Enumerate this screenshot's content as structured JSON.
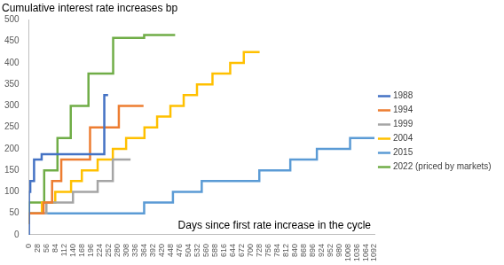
{
  "chart_data": {
    "type": "line",
    "title": "Cumulative interest rate increases bp",
    "x_label": "Days since first rate increase in the cycle",
    "line_style": "step",
    "grid": false,
    "legend": "right",
    "xlim": [
      0,
      1092
    ],
    "xticks": [
      0,
      28,
      56,
      84,
      112,
      140,
      168,
      196,
      224,
      252,
      280,
      308,
      336,
      364,
      392,
      420,
      448,
      476,
      504,
      532,
      560,
      588,
      616,
      644,
      672,
      700,
      728,
      756,
      784,
      812,
      840,
      868,
      896,
      924,
      952,
      980,
      1008,
      1036,
      1064,
      1092
    ],
    "ylim": [
      0,
      500
    ],
    "yticks": [
      0,
      50,
      100,
      150,
      200,
      250,
      300,
      350,
      400,
      450,
      500
    ],
    "series": [
      {
        "name": "1988",
        "color": "#4472c4",
        "x": [
          0,
          4,
          16,
          40,
          238,
          250
        ],
        "values": [
          0,
          100,
          125,
          175,
          187.5,
          325
        ]
      },
      {
        "name": "1994",
        "color": "#ed7d31",
        "x": [
          0,
          46,
          73,
          102,
          193,
          284,
          362
        ],
        "values": [
          25,
          50,
          75,
          125,
          175,
          250,
          300
        ]
      },
      {
        "name": "1999",
        "color": "#a5a5a5",
        "x": [
          0,
          55,
          139,
          217,
          265,
          321
        ],
        "values": [
          25,
          50,
          75,
          100,
          125,
          175
        ]
      },
      {
        "name": "2004",
        "color": "#ffc000",
        "x": [
          0,
          41,
          83,
          133,
          167,
          217,
          265,
          307,
          365,
          405,
          447,
          489,
          531,
          580,
          636,
          679,
          729
        ],
        "values": [
          25,
          50,
          75,
          100,
          125,
          150,
          175,
          200,
          225,
          250,
          275,
          300,
          325,
          350,
          375,
          400,
          425
        ]
      },
      {
        "name": "2015",
        "color": "#5b9bd5",
        "x": [
          0,
          364,
          455,
          546,
          728,
          826,
          910,
          1015,
          1092
        ],
        "values": [
          25,
          50,
          75,
          100,
          125,
          150,
          175,
          200,
          225
        ]
      },
      {
        "name": "2022 (priced by markets)",
        "color": "#70ad47",
        "x": [
          0,
          48,
          90,
          132,
          188,
          266,
          364,
          448,
          462
        ],
        "values": [
          25,
          75,
          150,
          225,
          300,
          375,
          458,
          465,
          465
        ]
      }
    ]
  }
}
